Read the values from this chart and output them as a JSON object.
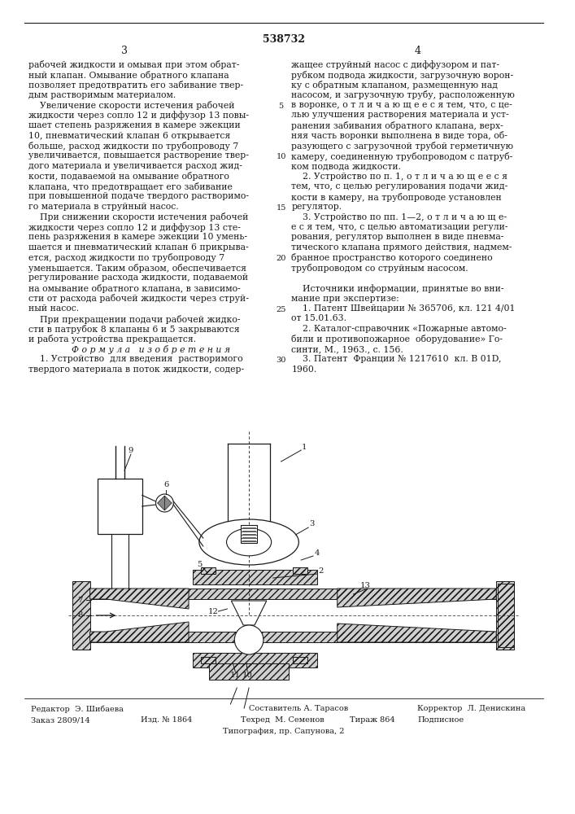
{
  "patent_number": "538732",
  "page_left": "3",
  "page_right": "4",
  "background_color": "#ffffff",
  "text_color": "#1a1a1a",
  "left_col_text": [
    [
      "рабочей жидкости и омывая при этом обрат-",
      false
    ],
    [
      "ный клапан. Омывание обратного клапана",
      false
    ],
    [
      "позволяет предотвратить его забивание твер-",
      false
    ],
    [
      "дым растворимым материалом.",
      false
    ],
    [
      "    Увеличение скорости истечения рабочей",
      false
    ],
    [
      "жидкости через сопло 12 и диффузор 13 повы-",
      false
    ],
    [
      "шает степень разряжения в камере эжекции",
      false
    ],
    [
      "10, пневматический клапан 6 открывается",
      false
    ],
    [
      "больше, расход жидкости по трубопроводу 7",
      false
    ],
    [
      "увеличивается, повышается растворение твер-",
      false
    ],
    [
      "дого материала и увеличивается расход жид-",
      false
    ],
    [
      "кости, подаваемой на омывание обратного",
      false
    ],
    [
      "клапана, что предотвращает его забивание",
      false
    ],
    [
      "при повышенной подаче твердого растворимо-",
      false
    ],
    [
      "го материала в струйный насос.",
      false
    ],
    [
      "    При снижении скорости истечения рабочей",
      false
    ],
    [
      "жидкости через сопло 12 и диффузор 13 сте-",
      false
    ],
    [
      "пень разряжения в камере эжекции 10 умень-",
      false
    ],
    [
      "шается и пневматический клапан 6 прикрыва-",
      false
    ],
    [
      "ется, расход жидкости по трубопроводу 7",
      false
    ],
    [
      "уменьшается. Таким образом, обеспечивается",
      false
    ],
    [
      "регулирование расхода жидкости, подаваемой",
      false
    ],
    [
      "на омывание обратного клапана, в зависимо-",
      false
    ],
    [
      "сти от расхода рабочей жидкости через струй-",
      false
    ],
    [
      "ный насос.",
      false
    ],
    [
      "    При прекращении подачи рабочей жидко-",
      false
    ],
    [
      "сти в патрубок 8 клапаны 6 и 5 закрываются",
      false
    ],
    [
      "и работа устройства прекращается.",
      false
    ],
    [
      "         Ф о р м у л а   и з о б р е т е н и я",
      true
    ],
    [
      "    1. Устройство  для введения  растворимого",
      false
    ],
    [
      "твердого материала в поток жидкости, содер-",
      false
    ]
  ],
  "right_col_text": [
    "жащее струйный насос с диффузором и пат-",
    "рубком подвода жидкости, загрузочную ворон-",
    "ку с обратным клапаном, размещенную над",
    "насосом, и загрузочную трубу, расположенную",
    "в воронке, о т л и ч а ю щ е е с я тем, что, с це-",
    "лью улучшения растворения материала и уст-",
    "ранения забивания обратного клапана, верх-",
    "няя часть воронки выполнена в виде тора, об-",
    "разующего с загрузочной трубой герметичную",
    "камеру, соединенную трубопроводом с патруб-",
    "ком подвода жидкости.",
    "    2. Устройство по п. 1, о т л и ч а ю щ е е с я",
    "тем, что, с целью регулирования подачи жид-",
    "кости в камеру, на трубопроводе установлен",
    "регулятор.",
    "    3. Устройство по пп. 1—2, о т л и ч а ю щ е-",
    "е с я тем, что, с целью автоматизации регули-",
    "рования, регулятор выполнен в виде пневма-",
    "тического клапана прямого действия, надмем-",
    "бранное пространство которого соединено",
    "трубопроводом со струйным насосом.",
    "",
    "    Источники информации, принятые во вни-",
    "мание при экспертизе:",
    "    1. Патент Швейцарии № 365706, кл. 121 4/01",
    "от 15.01.63.",
    "    2. Каталог-справочник «Пожарные автомо-",
    "били и противопожарное  оборудование» Го-",
    "синти, М., 1963., с. 156.",
    "    3. Патент  Франции № 1217610  кл. В 01D,",
    "1960."
  ],
  "line_numbers_right": [
    5,
    10,
    15,
    20,
    25,
    30
  ],
  "line_numbers_positions": [
    4,
    9,
    14,
    19,
    24,
    29
  ],
  "footer_editor": "Редактор  Э. Шибаева",
  "footer_composer": "Составитель А. Тарасов",
  "footer_corrector": "Корректор  Л. Денискина",
  "footer_order": "Заказ 2809/14",
  "footer_issue": "Изд. № 1864",
  "footer_tech": "Техред  М. Семенов",
  "footer_circ": "Тираж 864",
  "footer_sign": "Подписное",
  "footer_print": "Типография, пр. Сапунова, 2"
}
